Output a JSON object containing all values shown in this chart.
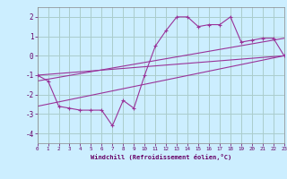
{
  "title": "",
  "xlabel": "Windchill (Refroidissement éolien,°C)",
  "background_color": "#cceeff",
  "grid_color": "#aacccc",
  "line_color": "#993399",
  "xlim": [
    0,
    23
  ],
  "ylim": [
    -4.5,
    2.5
  ],
  "yticks": [
    -4,
    -3,
    -2,
    -1,
    0,
    1,
    2
  ],
  "xticks": [
    0,
    1,
    2,
    3,
    4,
    5,
    6,
    7,
    8,
    9,
    10,
    11,
    12,
    13,
    14,
    15,
    16,
    17,
    18,
    19,
    20,
    21,
    22,
    23
  ],
  "series1_x": [
    0,
    1,
    2,
    3,
    4,
    5,
    6,
    7,
    8,
    9,
    10,
    11,
    12,
    13,
    14,
    15,
    16,
    17,
    18,
    19,
    20,
    21,
    22,
    23
  ],
  "series1_y": [
    -1.0,
    -1.3,
    -2.6,
    -2.7,
    -2.8,
    -2.8,
    -2.8,
    -3.6,
    -2.3,
    -2.7,
    -1.0,
    0.5,
    1.3,
    2.0,
    2.0,
    1.5,
    1.6,
    1.6,
    2.0,
    0.7,
    0.8,
    0.9,
    0.9,
    0.0
  ],
  "series2_x": [
    0,
    23
  ],
  "series2_y": [
    -1.0,
    0.0
  ],
  "series3_x": [
    0,
    23
  ],
  "series3_y": [
    -1.3,
    0.9
  ],
  "series4_x": [
    0,
    23
  ],
  "series4_y": [
    -2.6,
    0.0
  ]
}
